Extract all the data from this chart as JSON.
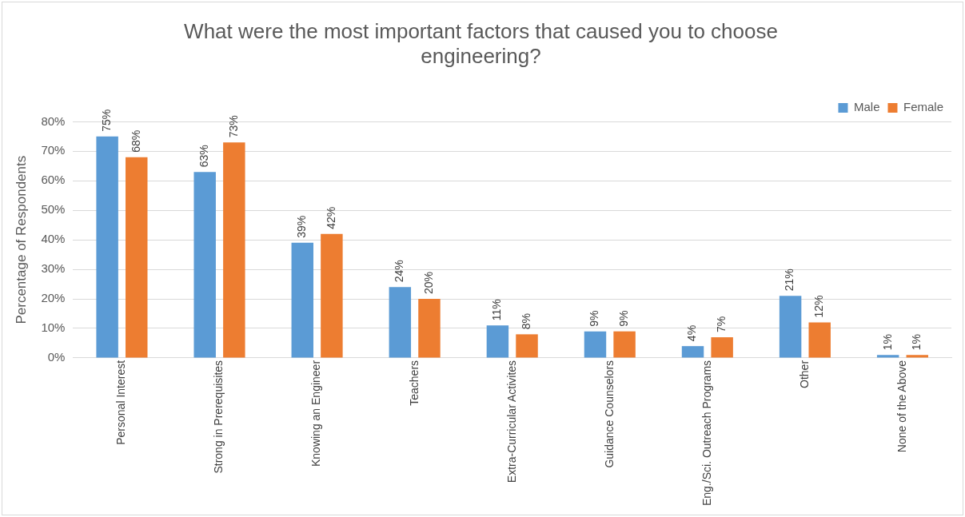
{
  "chart_data": {
    "type": "bar",
    "title": "What were the most important factors that caused you to choose engineering?",
    "ylabel": "Percentage of Respondents",
    "categories": [
      "Personal Interest",
      "Strong in Prerequisites",
      "Knowing an Engineer",
      "Teachers",
      "Extra-Curricular Activites",
      "Guidance Counselors",
      "Eng./Sci. Outreach Programs",
      "Other",
      "None of the Above"
    ],
    "series": [
      {
        "name": "Male",
        "color": "#5b9bd5",
        "values": [
          75,
          63,
          39,
          24,
          11,
          9,
          4,
          21,
          1
        ],
        "value_labels": [
          "75%",
          "63%",
          "39%",
          "24%",
          "11%",
          "9%",
          "4%",
          "21%",
          "1%"
        ]
      },
      {
        "name": "Female",
        "color": "#ed7d31",
        "values": [
          68,
          73,
          42,
          20,
          8,
          9,
          7,
          12,
          1
        ],
        "value_labels": [
          "68%",
          "73%",
          "42%",
          "20%",
          "8%",
          "9%",
          "7%",
          "12%",
          "1%"
        ]
      }
    ],
    "ylim": [
      0,
      80
    ],
    "yticks": [
      {
        "value": 0,
        "label": "0%"
      },
      {
        "value": 10,
        "label": "10%"
      },
      {
        "value": 20,
        "label": "20%"
      },
      {
        "value": 30,
        "label": "30%"
      },
      {
        "value": 40,
        "label": "40%"
      },
      {
        "value": 50,
        "label": "50%"
      },
      {
        "value": 60,
        "label": "60%"
      },
      {
        "value": 70,
        "label": "70%"
      },
      {
        "value": 80,
        "label": "80%"
      }
    ],
    "grid": "y",
    "legend": "top right"
  }
}
